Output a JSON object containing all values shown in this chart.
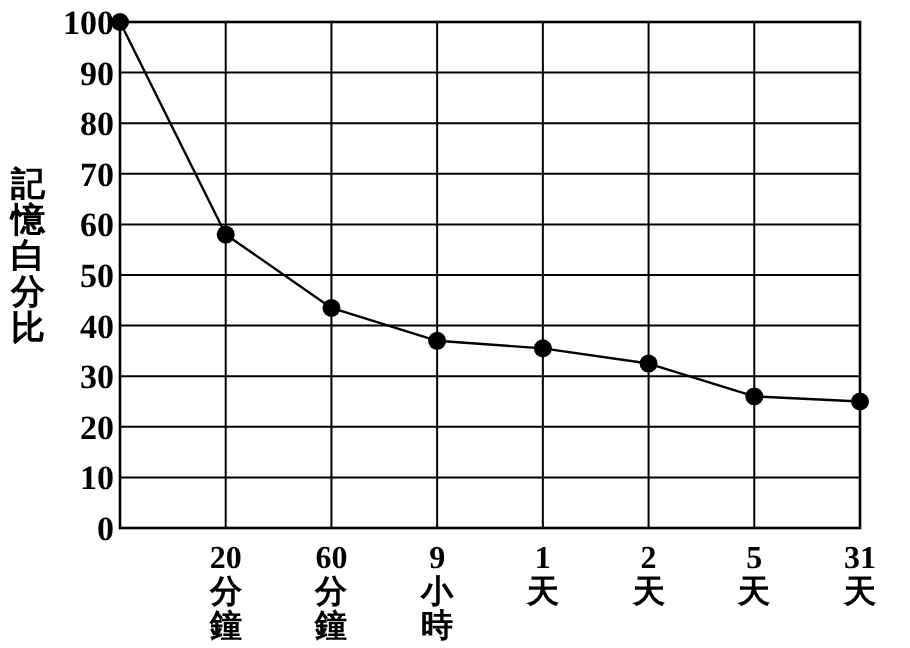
{
  "chart_data": {
    "type": "line",
    "ylabel": "記憶白分比",
    "categories": [
      null,
      "20分鐘",
      "60分鐘",
      "9小時",
      "1天",
      "2天",
      "5天",
      "31天"
    ],
    "series": [
      {
        "color": "#000000",
        "values": [
          100,
          58,
          43.5,
          37,
          35.5,
          32.5,
          26,
          25
        ]
      }
    ],
    "ylim": [
      0,
      100
    ],
    "yticks": [
      0,
      10,
      20,
      30,
      40,
      50,
      60,
      70,
      80,
      90,
      100
    ],
    "grid": true,
    "marker": "circle",
    "line_style": "solid"
  }
}
